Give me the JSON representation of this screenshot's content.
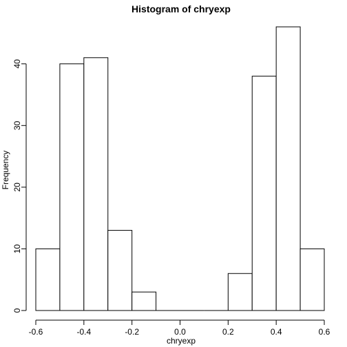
{
  "chart_data": {
    "type": "bar",
    "subtype": "histogram",
    "title": "Histogram of chryexp",
    "xlabel": "chryexp",
    "ylabel": "Frequency",
    "bin_edges": [
      -0.6,
      -0.5,
      -0.4,
      -0.3,
      -0.2,
      -0.1,
      0.0,
      0.1,
      0.2,
      0.3,
      0.4,
      0.5,
      0.6
    ],
    "values": [
      10,
      40,
      41,
      13,
      3,
      0,
      0,
      0,
      6,
      38,
      46,
      10
    ],
    "xlim": [
      -0.6,
      0.6
    ],
    "ylim": [
      0,
      46
    ],
    "x_ticks": [
      -0.6,
      -0.4,
      -0.2,
      0.0,
      0.2,
      0.4,
      0.6
    ],
    "x_tick_labels": [
      "-0.6",
      "-0.4",
      "-0.2",
      "0.0",
      "0.2",
      "0.4",
      "0.6"
    ],
    "y_ticks": [
      0,
      10,
      20,
      30,
      40
    ],
    "y_tick_labels": [
      "0",
      "10",
      "20",
      "30",
      "40"
    ],
    "grid": false,
    "bar_fill": "#ffffff",
    "bar_stroke": "#000000"
  }
}
